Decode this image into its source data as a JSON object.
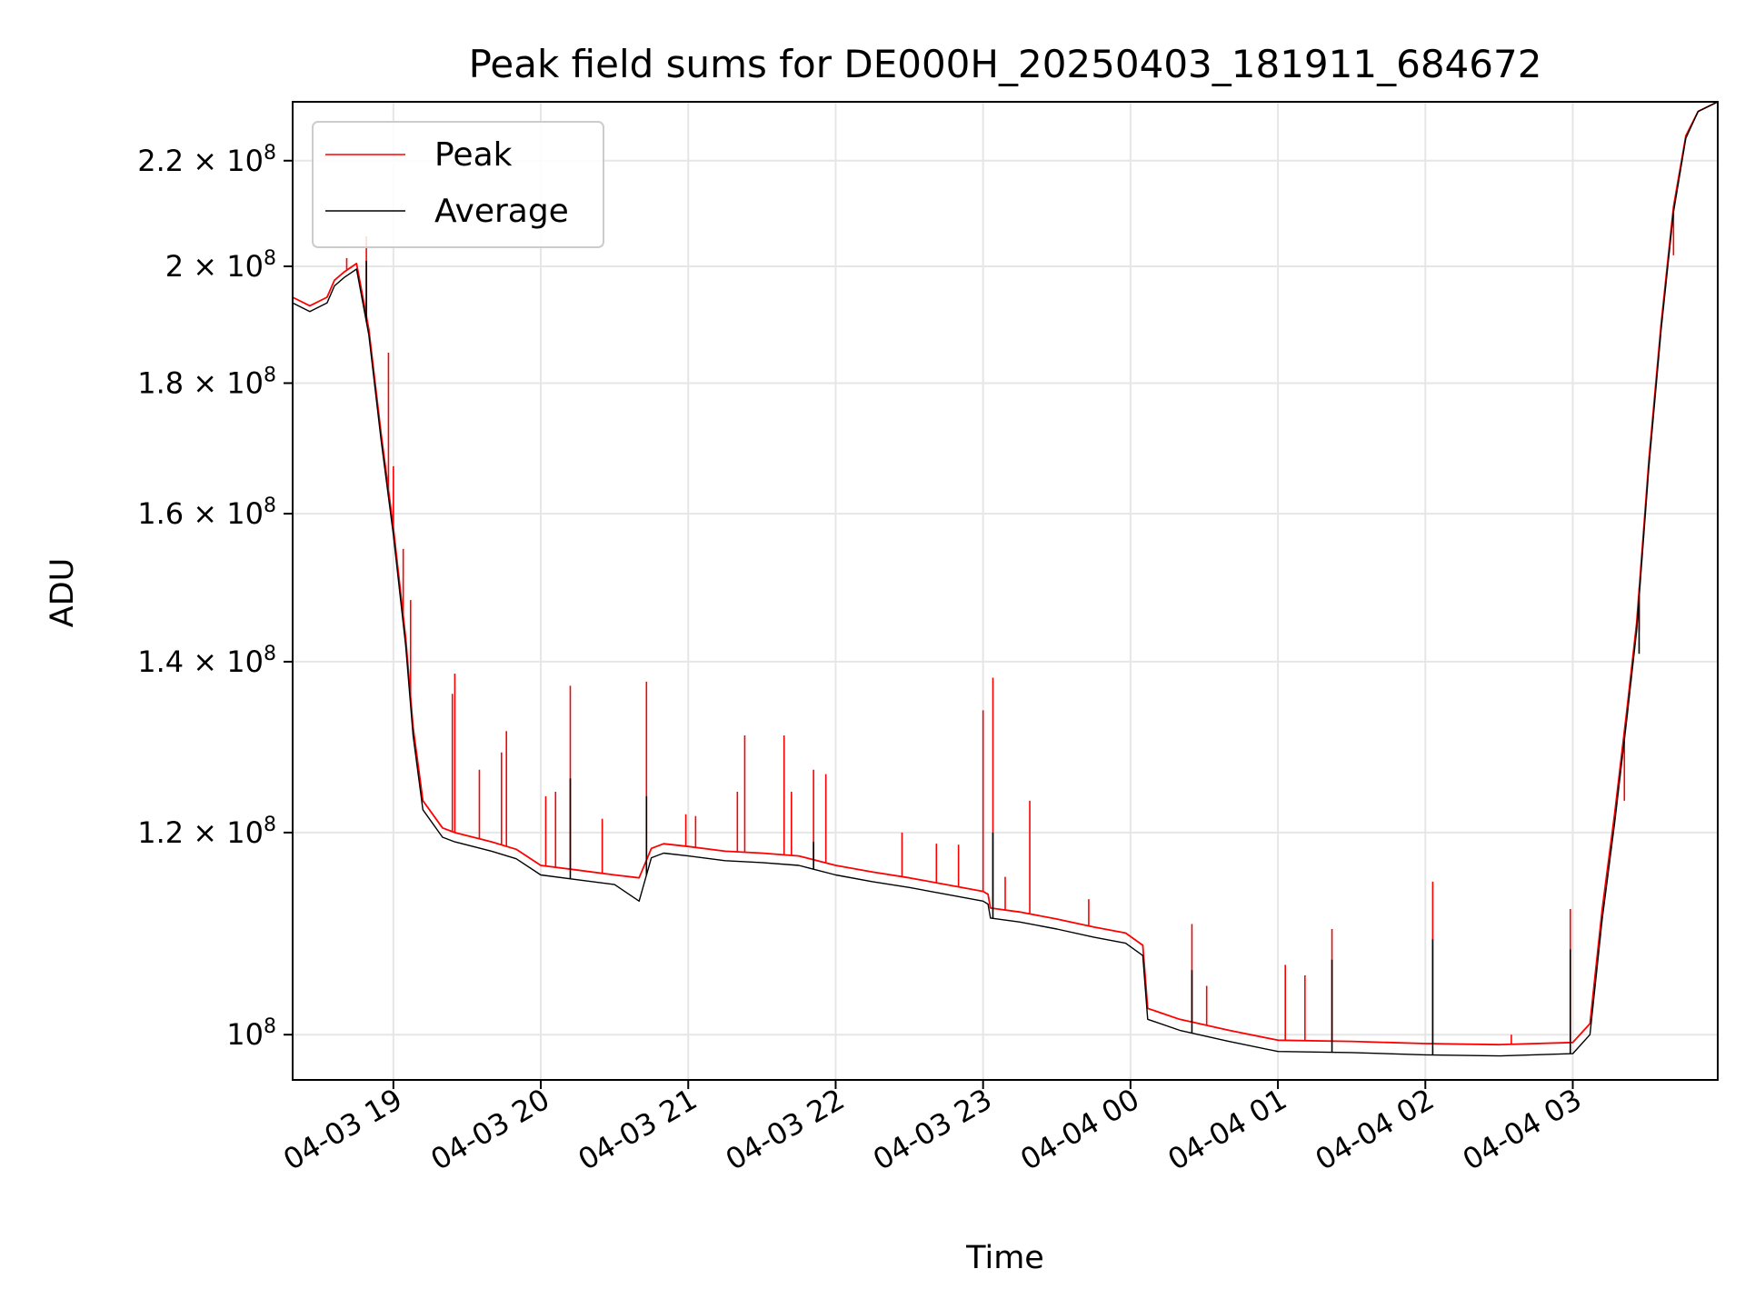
{
  "chart_data": {
    "type": "line",
    "title": "Peak field sums for DE000H_20250403_181911_684672",
    "xlabel": "Time",
    "ylabel": "ADU",
    "xscale": "time",
    "yscale": "log",
    "xlim": [
      "2025-04-03 18:19",
      "2025-04-04 03:59"
    ],
    "ylim": [
      96000000,
      232000000
    ],
    "grid": true,
    "legend_position": "upper left",
    "x_ticks": [
      "2025-04-03 19:00",
      "2025-04-03 20:00",
      "2025-04-03 21:00",
      "2025-04-03 22:00",
      "2025-04-03 23:00",
      "2025-04-04 00:00",
      "2025-04-04 01:00",
      "2025-04-04 02:00",
      "2025-04-04 03:00"
    ],
    "x_tick_labels": [
      "04-03 19",
      "04-03 20",
      "04-03 21",
      "04-03 22",
      "04-03 23",
      "04-04 00",
      "04-04 01",
      "04-04 02",
      "04-04 03"
    ],
    "y_ticks": [
      100000000,
      120000000,
      140000000,
      160000000,
      180000000,
      200000000,
      220000000
    ],
    "y_tick_labels": [
      {
        "mant": "",
        "exp": "8"
      },
      {
        "mant": "1.2",
        "exp": "8"
      },
      {
        "mant": "1.4",
        "exp": "8"
      },
      {
        "mant": "1.6",
        "exp": "8"
      },
      {
        "mant": "1.8",
        "exp": "8"
      },
      {
        "mant": "2",
        "exp": "8"
      },
      {
        "mant": "2.2",
        "exp": "8"
      }
    ],
    "series": [
      {
        "name": "Peak",
        "color": "#ff0000",
        "x": [
          "2025-04-03 18:19",
          "2025-04-03 18:26",
          "2025-04-03 18:33",
          "2025-04-03 18:36",
          "2025-04-03 18:40",
          "2025-04-03 18:45",
          "2025-04-03 18:50",
          "2025-04-03 18:55",
          "2025-04-03 19:00",
          "2025-04-03 19:05",
          "2025-04-03 19:08",
          "2025-04-03 19:12",
          "2025-04-03 19:20",
          "2025-04-03 19:25",
          "2025-04-03 19:40",
          "2025-04-03 19:50",
          "2025-04-03 20:00",
          "2025-04-03 20:15",
          "2025-04-03 20:30",
          "2025-04-03 20:40",
          "2025-04-03 20:45",
          "2025-04-03 20:50",
          "2025-04-03 21:00",
          "2025-04-03 21:15",
          "2025-04-03 21:30",
          "2025-04-03 21:45",
          "2025-04-03 22:00",
          "2025-04-03 22:15",
          "2025-04-03 22:30",
          "2025-04-03 22:45",
          "2025-04-03 23:00",
          "2025-04-03 23:02",
          "2025-04-03 23:03",
          "2025-04-03 23:15",
          "2025-04-03 23:30",
          "2025-04-03 23:45",
          "2025-04-03 23:58",
          "2025-04-04 00:05",
          "2025-04-04 00:07",
          "2025-04-04 00:20",
          "2025-04-04 00:40",
          "2025-04-04 01:00",
          "2025-04-04 01:30",
          "2025-04-04 02:00",
          "2025-04-04 02:30",
          "2025-04-04 03:00",
          "2025-04-04 03:07",
          "2025-04-04 03:12",
          "2025-04-04 03:17",
          "2025-04-04 03:22",
          "2025-04-04 03:26",
          "2025-04-04 03:31",
          "2025-04-04 03:36",
          "2025-04-04 03:41",
          "2025-04-04 03:46",
          "2025-04-04 03:51",
          "2025-04-04 03:59"
        ],
        "y": [
          194500000,
          193000000,
          194500000,
          197500000,
          199000000,
          200500000,
          189000000,
          172000000,
          158000000,
          143000000,
          132000000,
          123500000,
          120500000,
          120000000,
          119000000,
          118200000,
          116500000,
          116000000,
          115500000,
          115200000,
          118300000,
          118800000,
          118500000,
          118000000,
          117800000,
          117500000,
          116500000,
          115800000,
          115200000,
          114500000,
          113800000,
          113500000,
          112100000,
          111700000,
          111000000,
          110200000,
          109600000,
          108400000,
          102400000,
          101400000,
          100400000,
          99500000,
          99400000,
          99200000,
          99100000,
          99300000,
          101000000,
          112000000,
          122000000,
          134000000,
          145000000,
          168000000,
          190000000,
          211000000,
          225000000,
          230000000,
          232000000
        ],
        "spikes": [
          [
            "2025-04-03 18:41",
            201500000
          ],
          [
            "2025-04-03 18:49",
            205500000
          ],
          [
            "2025-04-03 18:58",
            185000000
          ],
          [
            "2025-04-03 19:00",
            167000000
          ],
          [
            "2025-04-03 19:04",
            155000000
          ],
          [
            "2025-04-03 19:07",
            148000000
          ],
          [
            "2025-04-03 19:24",
            136000000
          ],
          [
            "2025-04-03 19:25",
            138500000
          ],
          [
            "2025-04-03 19:35",
            127000000
          ],
          [
            "2025-04-03 19:44",
            129000000
          ],
          [
            "2025-04-03 19:46",
            131500000
          ],
          [
            "2025-04-03 20:02",
            124000000
          ],
          [
            "2025-04-03 20:06",
            124500000
          ],
          [
            "2025-04-03 20:12",
            137000000
          ],
          [
            "2025-04-03 20:25",
            121500000
          ],
          [
            "2025-04-03 20:43",
            137500000
          ],
          [
            "2025-04-03 20:59",
            122000000
          ],
          [
            "2025-04-03 21:03",
            121800000
          ],
          [
            "2025-04-03 21:20",
            124500000
          ],
          [
            "2025-04-03 21:23",
            131000000
          ],
          [
            "2025-04-03 21:39",
            131000000
          ],
          [
            "2025-04-03 21:42",
            124500000
          ],
          [
            "2025-04-03 21:51",
            127000000
          ],
          [
            "2025-04-03 21:56",
            126500000
          ],
          [
            "2025-04-03 22:27",
            120000000
          ],
          [
            "2025-04-03 22:41",
            118800000
          ],
          [
            "2025-04-03 22:50",
            118700000
          ],
          [
            "2025-04-03 23:00",
            134000000
          ],
          [
            "2025-04-03 23:04",
            138000000
          ],
          [
            "2025-04-03 23:09",
            115300000
          ],
          [
            "2025-04-03 23:19",
            123500000
          ],
          [
            "2025-04-03 23:43",
            113000000
          ],
          [
            "2025-04-04 00:25",
            110500000
          ],
          [
            "2025-04-04 00:31",
            104500000
          ],
          [
            "2025-04-04 01:03",
            106500000
          ],
          [
            "2025-04-04 01:11",
            105500000
          ],
          [
            "2025-04-04 01:22",
            110000000
          ],
          [
            "2025-04-04 02:03",
            114800000
          ],
          [
            "2025-04-04 02:35",
            100000000
          ],
          [
            "2025-04-04 02:59",
            112000000
          ],
          [
            "2025-04-04 03:21",
            123500000
          ],
          [
            "2025-04-04 03:27",
            144000000
          ],
          [
            "2025-04-04 03:41",
            202000000
          ]
        ]
      },
      {
        "name": "Average",
        "color": "#000000",
        "x": [
          "2025-04-03 18:19",
          "2025-04-03 18:26",
          "2025-04-03 18:33",
          "2025-04-03 18:36",
          "2025-04-03 18:40",
          "2025-04-03 18:45",
          "2025-04-03 18:50",
          "2025-04-03 18:55",
          "2025-04-03 19:00",
          "2025-04-03 19:05",
          "2025-04-03 19:08",
          "2025-04-03 19:12",
          "2025-04-03 19:20",
          "2025-04-03 19:25",
          "2025-04-03 19:40",
          "2025-04-03 19:50",
          "2025-04-03 20:00",
          "2025-04-03 20:15",
          "2025-04-03 20:30",
          "2025-04-03 20:40",
          "2025-04-03 20:45",
          "2025-04-03 20:50",
          "2025-04-03 21:00",
          "2025-04-03 21:15",
          "2025-04-03 21:30",
          "2025-04-03 21:45",
          "2025-04-03 22:00",
          "2025-04-03 22:15",
          "2025-04-03 22:30",
          "2025-04-03 22:45",
          "2025-04-03 23:00",
          "2025-04-03 23:02",
          "2025-04-03 23:03",
          "2025-04-03 23:15",
          "2025-04-03 23:30",
          "2025-04-03 23:45",
          "2025-04-03 23:58",
          "2025-04-04 00:05",
          "2025-04-04 00:07",
          "2025-04-04 00:20",
          "2025-04-04 00:40",
          "2025-04-04 01:00",
          "2025-04-04 01:30",
          "2025-04-04 02:00",
          "2025-04-04 02:30",
          "2025-04-04 03:00",
          "2025-04-04 03:07",
          "2025-04-04 03:12",
          "2025-04-04 03:17",
          "2025-04-04 03:22",
          "2025-04-04 03:26",
          "2025-04-04 03:31",
          "2025-04-04 03:36",
          "2025-04-04 03:41",
          "2025-04-04 03:46",
          "2025-04-04 03:51",
          "2025-04-04 03:59"
        ],
        "y": [
          193500000,
          192000000,
          193500000,
          196500000,
          198000000,
          199500000,
          188000000,
          171000000,
          157000000,
          142000000,
          131000000,
          122500000,
          119500000,
          119000000,
          118000000,
          117200000,
          115500000,
          115000000,
          114500000,
          112800000,
          117300000,
          117800000,
          117500000,
          117000000,
          116800000,
          116500000,
          115500000,
          114800000,
          114200000,
          113500000,
          112800000,
          112500000,
          111100000,
          110700000,
          110000000,
          109200000,
          108600000,
          107400000,
          101400000,
          100400000,
          99400000,
          98500000,
          98400000,
          98200000,
          98100000,
          98300000,
          100000000,
          111000000,
          121000000,
          133000000,
          144000000,
          167000000,
          189000000,
          210000000,
          224500000,
          230000000,
          232000000
        ],
        "spikes": [
          [
            "2025-04-03 18:49",
            201000000
          ],
          [
            "2025-04-03 20:12",
            126000000
          ],
          [
            "2025-04-03 20:43",
            124000000
          ],
          [
            "2025-04-03 21:51",
            119000000
          ],
          [
            "2025-04-03 23:04",
            120000000
          ],
          [
            "2025-04-04 00:25",
            106000000
          ],
          [
            "2025-04-04 01:22",
            107000000
          ],
          [
            "2025-04-04 02:03",
            109000000
          ],
          [
            "2025-04-04 02:59",
            108000000
          ],
          [
            "2025-04-04 03:27",
            141000000
          ]
        ]
      }
    ]
  }
}
